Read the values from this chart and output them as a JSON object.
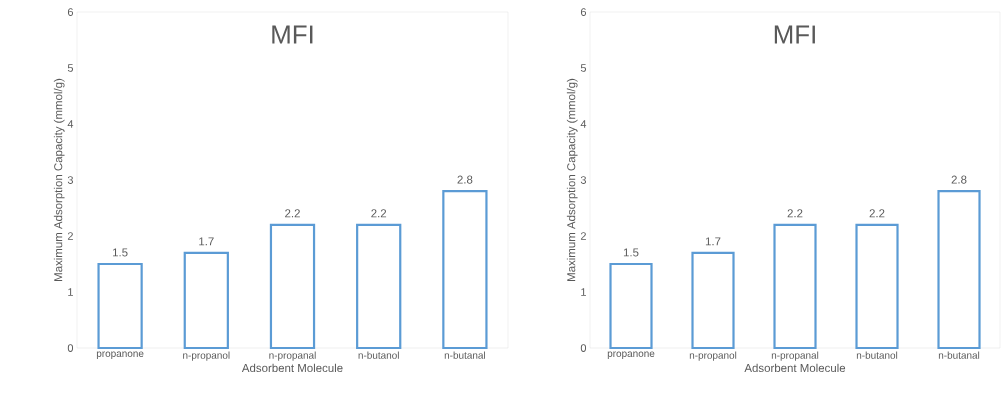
{
  "chart_data": [
    {
      "type": "bar",
      "title": "MFI",
      "xlabel": "Adsorbent Molecule",
      "ylabel": "Maximum Adsorption Capacity (mmol/g)",
      "categories": [
        "propanone",
        "n-propanol",
        "n-propanal",
        "n-butanol",
        "n-butanal"
      ],
      "values": [
        1.5,
        1.7,
        2.2,
        2.2,
        2.8
      ],
      "color": "#5b9bd5",
      "ylim": [
        0,
        6
      ],
      "yticks": [
        0,
        1,
        2,
        3,
        4,
        5,
        6
      ],
      "data_labels": true
    },
    {
      "type": "bar",
      "title": "MFI",
      "xlabel": "Adsorbent Molecule",
      "ylabel": "Maximum Adsorption Capacity (mmol/g)",
      "categories": [
        "propanone",
        "n-propanol",
        "n-propanal",
        "n-butanol",
        "n-butanal"
      ],
      "values": [
        1.5,
        1.7,
        2.2,
        2.2,
        2.8
      ],
      "color": "#5b9bd5",
      "ylim": [
        0,
        6
      ],
      "yticks": [
        0,
        1,
        2,
        3,
        4,
        5,
        6
      ],
      "data_labels": true
    }
  ]
}
